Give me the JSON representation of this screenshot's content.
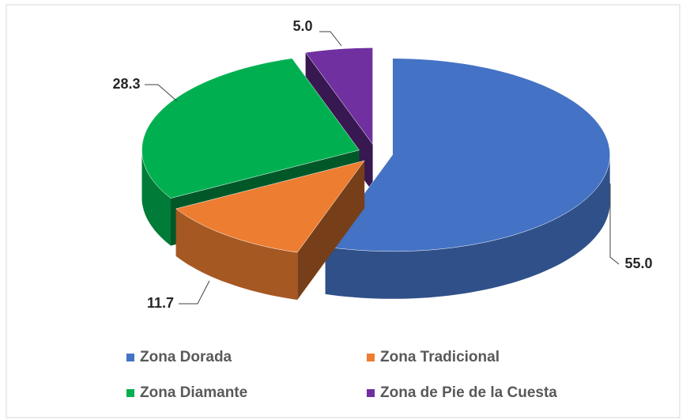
{
  "chart_data": {
    "type": "pie3d",
    "categories": [
      "Zona Dorada",
      "Zona Tradicional",
      "Zona Diamante",
      "Zona de Pie de la Cuesta"
    ],
    "values": [
      55.0,
      11.7,
      28.3,
      5.0
    ],
    "value_labels": [
      "55.0",
      "11.7",
      "28.3",
      "5.0"
    ],
    "colors": [
      "#4472c4",
      "#ed7d31",
      "#00b050",
      "#7030a0"
    ],
    "legend": "bottom"
  }
}
